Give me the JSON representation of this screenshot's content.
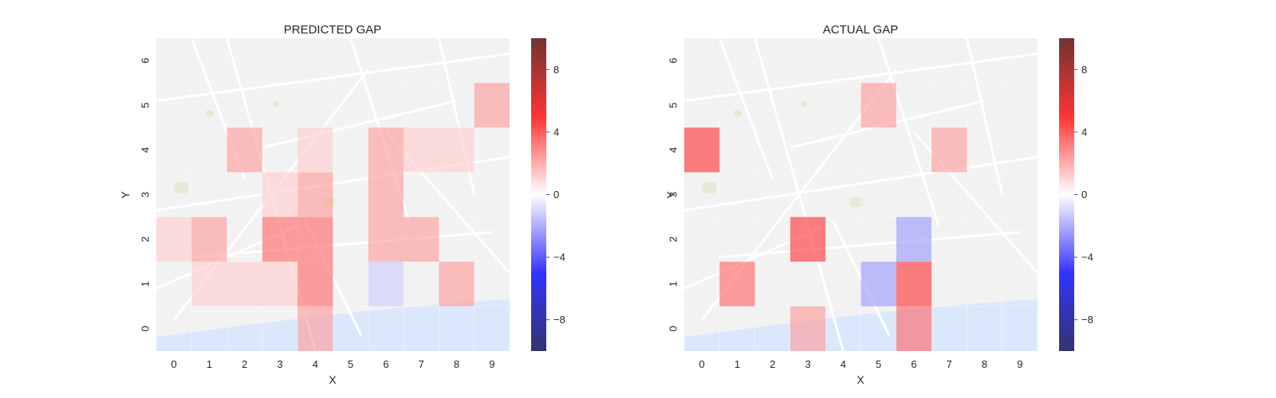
{
  "chart_data": [
    {
      "type": "heatmap",
      "title": "PREDICTED GAP",
      "xlabel": "X",
      "ylabel": "Y",
      "x_ticks": [
        "0",
        "1",
        "2",
        "3",
        "4",
        "5",
        "6",
        "7",
        "8",
        "9"
      ],
      "y_ticks": [
        "0",
        "1",
        "2",
        "3",
        "4",
        "5",
        "6"
      ],
      "xlim": [
        -0.5,
        9.5
      ],
      "ylim": [
        -0.5,
        6.5
      ],
      "colormap": "seismic",
      "vmin": -10,
      "vmax": 10,
      "colorbar_ticks": [
        "8",
        "4",
        "0",
        "−4",
        "−8"
      ],
      "colorbar_tick_values": [
        8,
        4,
        0,
        -4,
        -8
      ],
      "background": "map",
      "cells": [
        {
          "x": 9,
          "y": 5,
          "value": 2
        },
        {
          "x": 2,
          "y": 4,
          "value": 2
        },
        {
          "x": 4,
          "y": 4,
          "value": 1
        },
        {
          "x": 6,
          "y": 4,
          "value": 2
        },
        {
          "x": 7,
          "y": 4,
          "value": 1
        },
        {
          "x": 8,
          "y": 4,
          "value": 1
        },
        {
          "x": 3,
          "y": 3,
          "value": 1
        },
        {
          "x": 4,
          "y": 3,
          "value": 2
        },
        {
          "x": 6,
          "y": 3,
          "value": 2
        },
        {
          "x": 0,
          "y": 2,
          "value": 1
        },
        {
          "x": 1,
          "y": 2,
          "value": 2
        },
        {
          "x": 3,
          "y": 2,
          "value": 3
        },
        {
          "x": 4,
          "y": 2,
          "value": 3
        },
        {
          "x": 6,
          "y": 2,
          "value": 2
        },
        {
          "x": 7,
          "y": 2,
          "value": 2
        },
        {
          "x": 1,
          "y": 1,
          "value": 1
        },
        {
          "x": 2,
          "y": 1,
          "value": 1
        },
        {
          "x": 3,
          "y": 1,
          "value": 1
        },
        {
          "x": 4,
          "y": 1,
          "value": 3
        },
        {
          "x": 6,
          "y": 1,
          "value": -1
        },
        {
          "x": 8,
          "y": 1,
          "value": 2
        },
        {
          "x": 4,
          "y": 0,
          "value": 2
        }
      ]
    },
    {
      "type": "heatmap",
      "title": "ACTUAL GAP",
      "xlabel": "X",
      "ylabel": "Y",
      "x_ticks": [
        "0",
        "1",
        "2",
        "3",
        "4",
        "5",
        "6",
        "7",
        "8",
        "9"
      ],
      "y_ticks": [
        "0",
        "1",
        "2",
        "3",
        "4",
        "5",
        "6"
      ],
      "xlim": [
        -0.5,
        9.5
      ],
      "ylim": [
        -0.5,
        6.5
      ],
      "colormap": "seismic",
      "vmin": -10,
      "vmax": 10,
      "colorbar_ticks": [
        "8",
        "4",
        "0",
        "−4",
        "−8"
      ],
      "colorbar_tick_values": [
        8,
        4,
        0,
        -4,
        -8
      ],
      "background": "map",
      "cells": [
        {
          "x": 5,
          "y": 5,
          "value": 2
        },
        {
          "x": 0,
          "y": 4,
          "value": 4
        },
        {
          "x": 7,
          "y": 4,
          "value": 2
        },
        {
          "x": 3,
          "y": 2,
          "value": 4
        },
        {
          "x": 6,
          "y": 2,
          "value": -2
        },
        {
          "x": 1,
          "y": 1,
          "value": 3
        },
        {
          "x": 5,
          "y": 1,
          "value": -2
        },
        {
          "x": 6,
          "y": 1,
          "value": 4
        },
        {
          "x": 3,
          "y": 0,
          "value": 2
        },
        {
          "x": 6,
          "y": 0,
          "value": 3
        }
      ]
    }
  ]
}
